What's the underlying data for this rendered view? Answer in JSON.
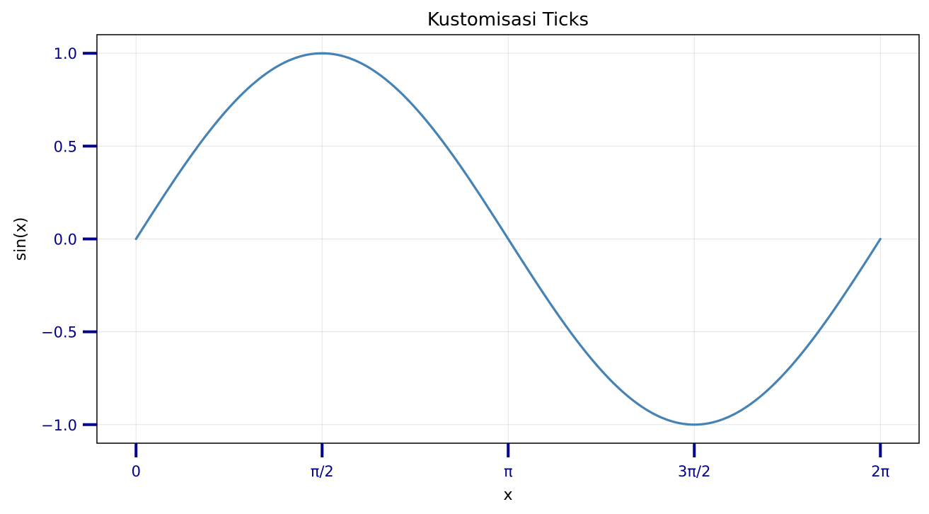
{
  "chart_data": {
    "type": "line",
    "title": "Kustomisasi Ticks",
    "xlabel": "x",
    "ylabel": "sin(x)",
    "xlim": [
      -0.33,
      6.61
    ],
    "ylim": [
      -1.1,
      1.1
    ],
    "grid": true,
    "x_ticks": [
      {
        "value": 0,
        "label": "0"
      },
      {
        "value": 1.5708,
        "label": "π/2"
      },
      {
        "value": 3.1416,
        "label": "π"
      },
      {
        "value": 4.7124,
        "label": "3π/2"
      },
      {
        "value": 6.2832,
        "label": "2π"
      }
    ],
    "y_ticks": [
      {
        "value": 1.0,
        "label": "1.0"
      },
      {
        "value": 0.5,
        "label": "0.5"
      },
      {
        "value": 0.0,
        "label": "0.0"
      },
      {
        "value": -0.5,
        "label": "−0.5"
      },
      {
        "value": -1.0,
        "label": "−1.0"
      }
    ],
    "series": [
      {
        "function": "sin(x)",
        "x_range": [
          0,
          6.2832
        ],
        "points": 200,
        "color": "#4682b4"
      }
    ],
    "tick_color": "#00008b"
  }
}
